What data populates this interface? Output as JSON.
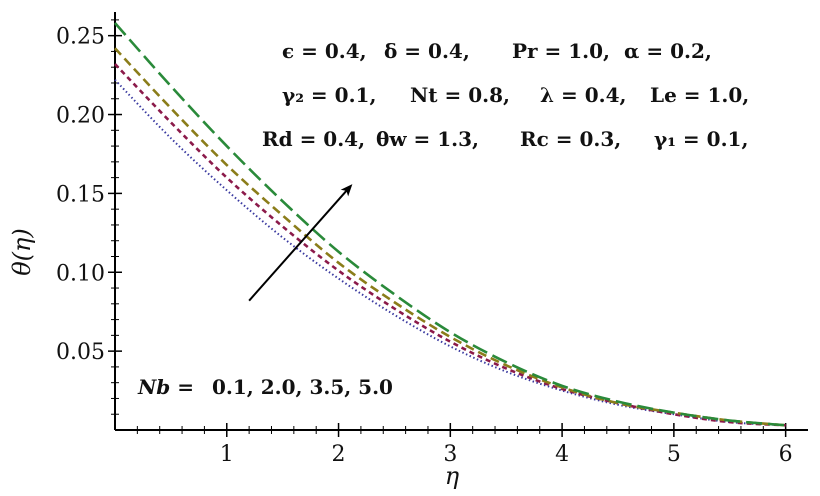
{
  "chart_data": {
    "type": "line",
    "xlabel": "η",
    "ylabel": "θ(η)",
    "xlim": [
      0,
      6.2
    ],
    "ylim": [
      0,
      0.265
    ],
    "xticks": [
      1,
      2,
      3,
      4,
      5,
      6
    ],
    "xtick_labels": [
      "1",
      "2",
      "3",
      "4",
      "5",
      "6"
    ],
    "yticks": [
      0.05,
      0.1,
      0.15,
      0.2,
      0.25
    ],
    "ytick_labels": [
      "0.05",
      "0.10",
      "0.15",
      "0.20",
      "0.25"
    ],
    "grid": false,
    "legend": "none",
    "x": [
      0,
      0.5,
      1,
      1.5,
      2,
      2.5,
      3,
      3.5,
      4,
      4.5,
      5,
      5.5,
      6
    ],
    "series": [
      {
        "color": "#3a3aa0",
        "dash": "dotted",
        "values": [
          0.222,
          0.185,
          0.152,
          0.122,
          0.096,
          0.073,
          0.053,
          0.037,
          0.025,
          0.016,
          0.01,
          0.005,
          0.003
        ]
      },
      {
        "color": "#8b1a4a",
        "dash": "short-dash",
        "values": [
          0.232,
          0.195,
          0.16,
          0.129,
          0.101,
          0.077,
          0.056,
          0.039,
          0.026,
          0.017,
          0.01,
          0.005,
          0.003
        ]
      },
      {
        "color": "#8b7d1a",
        "dash": "medium-dash",
        "values": [
          0.242,
          0.204,
          0.168,
          0.136,
          0.106,
          0.081,
          0.059,
          0.041,
          0.027,
          0.017,
          0.011,
          0.006,
          0.003
        ]
      },
      {
        "color": "#2a8a3a",
        "dash": "long-dash",
        "values": [
          0.258,
          0.218,
          0.18,
          0.145,
          0.113,
          0.086,
          0.062,
          0.043,
          0.028,
          0.018,
          0.011,
          0.006,
          0.003
        ]
      }
    ],
    "annotations": {
      "line1": [
        "ϵ = 0.4,",
        "δ = 0.4,",
        "Pr = 1.0,",
        "α = 0.2,"
      ],
      "line2": [
        "γ₂ = 0.1,",
        "Nt = 0.8,",
        "λ = 0.4,",
        "Le = 1.0,"
      ],
      "line3": [
        "Rd = 0.4,",
        "θw = 1.3,",
        "Rc = 0.3,",
        "γ₁ = 0.1,"
      ],
      "nb_label": "Nb =",
      "nb_values": "0.1, 2.0, 3.5, 5.0"
    },
    "arrow": {
      "from": [
        1.2,
        0.082
      ],
      "to": [
        2.1,
        0.154
      ]
    }
  }
}
